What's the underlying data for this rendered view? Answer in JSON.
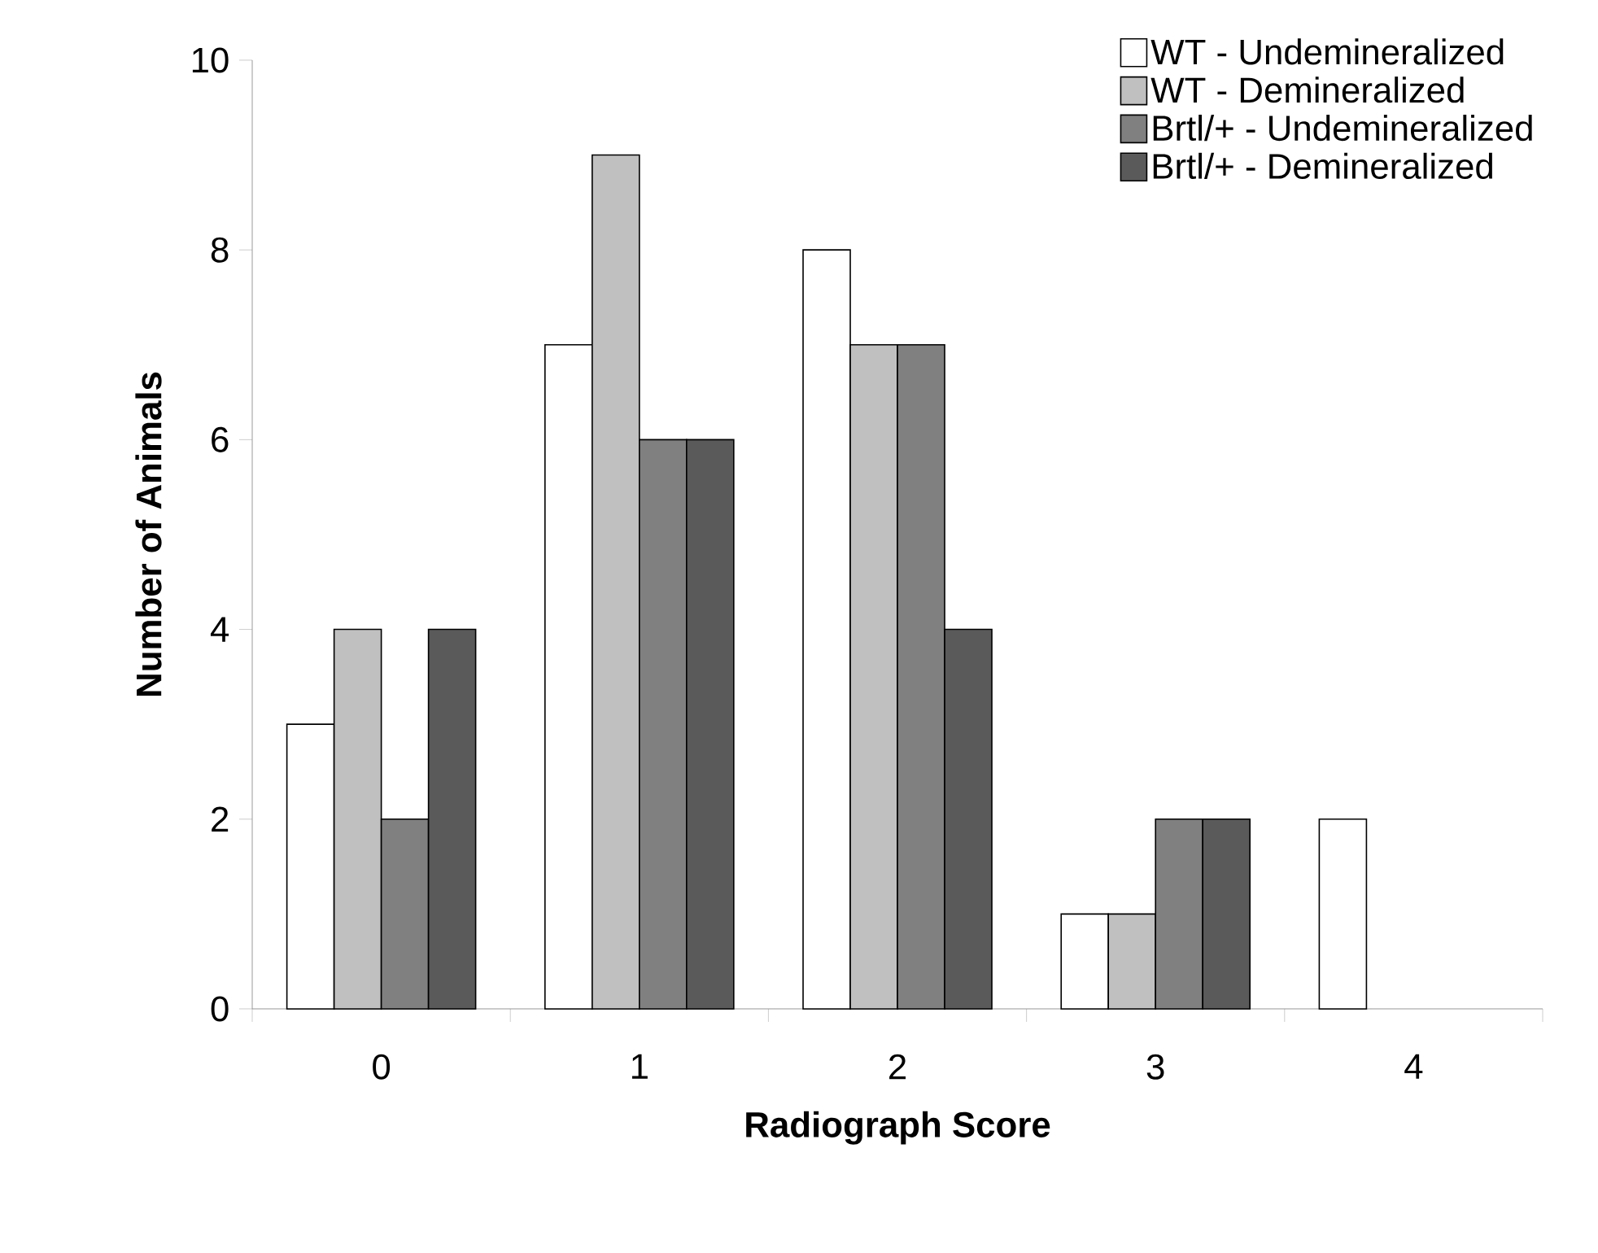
{
  "chart_data": {
    "type": "bar",
    "xlabel": "Radiograph Score",
    "ylabel": "Number of Animals",
    "categories": [
      "0",
      "1",
      "2",
      "3",
      "4"
    ],
    "series": [
      {
        "name": "WT - Undemineralized",
        "color": "#ffffff",
        "values": [
          3,
          7,
          8,
          1,
          2
        ]
      },
      {
        "name": "WT - Demineralized",
        "color": "#c0c0c0",
        "values": [
          4,
          9,
          7,
          1,
          null
        ]
      },
      {
        "name": "Brtl/+ - Undemineralized",
        "color": "#808080",
        "values": [
          2,
          6,
          7,
          2,
          null
        ]
      },
      {
        "name": "Brtl/+ - Demineralized",
        "color": "#5a5a5a",
        "values": [
          4,
          6,
          4,
          2,
          null
        ]
      }
    ],
    "ylim": [
      0,
      10
    ],
    "yticks": [
      0,
      2,
      4,
      6,
      8,
      10
    ],
    "grid": false,
    "legend": "top right"
  }
}
